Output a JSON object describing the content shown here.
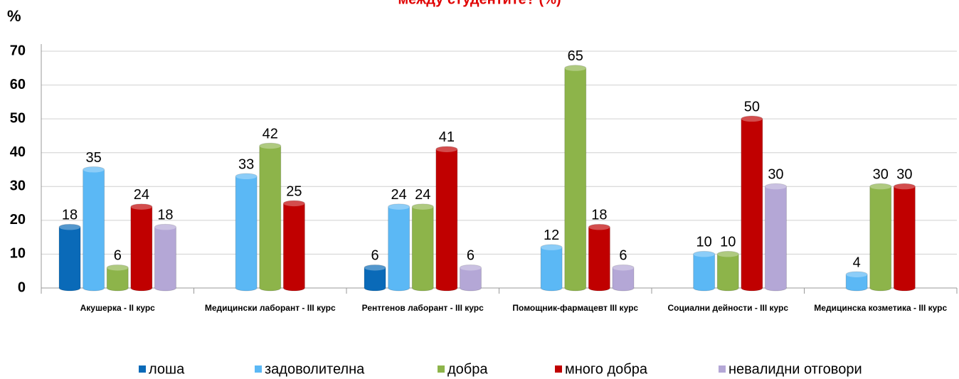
{
  "chart_data": {
    "type": "bar",
    "title": "между студентите? (%)",
    "y_label": "%",
    "categories": [
      "Акушерка - II курс",
      "Медицински лаборант - III курс",
      "Рентгенов  лаборант - III курс",
      "Помощник-фармацевт III курс",
      "Социални дейности - III курс",
      "Медицинска козметика - III курс"
    ],
    "series": [
      {
        "name": "лоша",
        "color": "#0a6ab8",
        "values": [
          18,
          null,
          6,
          null,
          null,
          null
        ]
      },
      {
        "name": "задоволителна",
        "color": "#5bb8f5",
        "values": [
          35,
          33,
          24,
          12,
          10,
          4
        ]
      },
      {
        "name": "добра",
        "color": "#8db44a",
        "values": [
          6,
          42,
          24,
          65,
          10,
          30
        ]
      },
      {
        "name": "много добра",
        "color": "#c00000",
        "values": [
          24,
          25,
          41,
          18,
          50,
          30
        ]
      },
      {
        "name": "невалидни отговори",
        "color": "#b4a7d6",
        "values": [
          18,
          null,
          6,
          6,
          30,
          null
        ]
      }
    ],
    "ylim": [
      0,
      70
    ],
    "yticks": [
      0,
      10,
      20,
      30,
      40,
      50,
      60,
      70
    ],
    "grid": true,
    "legend": "bottom"
  }
}
